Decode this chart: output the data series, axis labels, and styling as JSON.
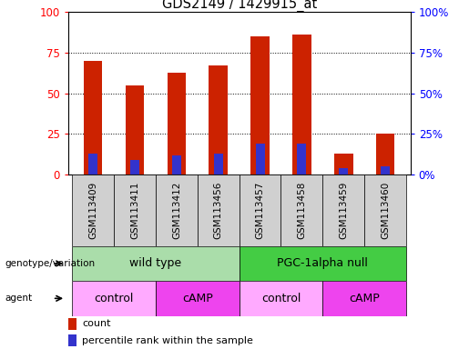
{
  "title": "GDS2149 / 1429915_at",
  "samples": [
    "GSM113409",
    "GSM113411",
    "GSM113412",
    "GSM113456",
    "GSM113457",
    "GSM113458",
    "GSM113459",
    "GSM113460"
  ],
  "red_values": [
    70,
    55,
    63,
    67,
    85,
    86,
    13,
    25
  ],
  "blue_values": [
    13,
    9,
    12,
    13,
    19,
    19,
    4,
    5
  ],
  "ylim": [
    0,
    100
  ],
  "yticks": [
    0,
    25,
    50,
    75,
    100
  ],
  "bar_color": "#cc2200",
  "blue_color": "#3333cc",
  "bar_width": 0.45,
  "blue_bar_width": 0.22,
  "genotype_groups": [
    {
      "label": "wild type",
      "start": 0,
      "end": 4,
      "color": "#aaddaa"
    },
    {
      "label": "PGC-1alpha null",
      "start": 4,
      "end": 8,
      "color": "#44cc44"
    }
  ],
  "agent_groups": [
    {
      "label": "control",
      "start": 0,
      "end": 2,
      "color": "#ffaaff"
    },
    {
      "label": "cAMP",
      "start": 2,
      "end": 4,
      "color": "#ee44ee"
    },
    {
      "label": "control",
      "start": 4,
      "end": 6,
      "color": "#ffaaff"
    },
    {
      "label": "cAMP",
      "start": 6,
      "end": 8,
      "color": "#ee44ee"
    }
  ],
  "legend_count_color": "#cc2200",
  "legend_pct_color": "#3333cc",
  "sample_bg": "#d0d0d0"
}
